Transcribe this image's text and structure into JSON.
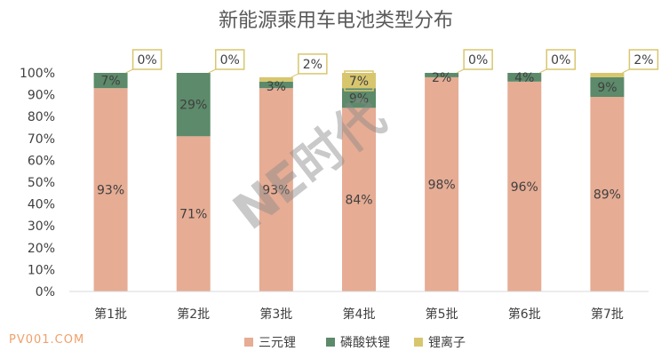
{
  "colors": {
    "sanyuan": "#e6ac94",
    "lfp": "#5c8a6a",
    "liion": "#d8c66e",
    "axis": "#d9d9d9",
    "callout_border": "#d8c66e",
    "site_mark": "#f0a06a"
  },
  "watermark": "NE时代",
  "site_mark": "PV001.COM",
  "chart_data": {
    "type": "bar",
    "stacked": true,
    "title": "新能源乘用车电池类型分布",
    "categories": [
      "第1批",
      "第2批",
      "第3批",
      "第4批",
      "第5批",
      "第6批",
      "第7批"
    ],
    "series": [
      {
        "name": "三元锂",
        "values": [
          93,
          71,
          93,
          84,
          98,
          96,
          89
        ],
        "labels": [
          "93%",
          "71%",
          "93%",
          "84%",
          "98%",
          "96%",
          "89%"
        ]
      },
      {
        "name": "磷酸铁锂",
        "values": [
          7,
          29,
          3,
          9,
          2,
          4,
          9
        ],
        "labels": [
          "7%",
          "29%",
          "3%",
          "9%",
          "2%",
          "4%",
          "9%"
        ]
      },
      {
        "name": "锂离子",
        "values": [
          0,
          0,
          2,
          7,
          0,
          0,
          2
        ],
        "labels": [
          "0%",
          "0%",
          "2%",
          "7%",
          "0%",
          "0%",
          "2%"
        ]
      }
    ],
    "ylim": [
      0,
      100
    ],
    "yticks": [
      "0%",
      "10%",
      "20%",
      "30%",
      "40%",
      "50%",
      "60%",
      "70%",
      "80%",
      "90%",
      "100%"
    ],
    "xlabel": "",
    "ylabel": "",
    "legend_position": "bottom",
    "grid": false
  }
}
